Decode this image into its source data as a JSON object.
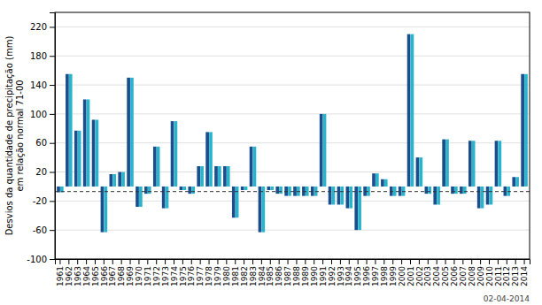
{
  "chart_data": {
    "type": "bar",
    "categories": [
      "1961",
      "1962",
      "1963",
      "1964",
      "1965",
      "1966",
      "1967",
      "1968",
      "1969",
      "1970",
      "1971",
      "1972",
      "1973",
      "1974",
      "1975",
      "1976",
      "1977",
      "1978",
      "1979",
      "1980",
      "1981",
      "1982",
      "1983",
      "1984",
      "1985",
      "1986",
      "1987",
      "1988",
      "1989",
      "1990",
      "1991",
      "1992",
      "1993",
      "1994",
      "1995",
      "1996",
      "1997",
      "1998",
      "1999",
      "2000",
      "2001",
      "2002",
      "2003",
      "2004",
      "2005",
      "2006",
      "2007",
      "2008",
      "2009",
      "2010",
      "2011",
      "2012",
      "2013",
      "2014"
    ],
    "series": [
      {
        "color": "#1a4e8c",
        "values": [
          -8,
          155,
          77,
          120,
          92,
          -63,
          17,
          20,
          150,
          -28,
          -10,
          55,
          -30,
          90,
          -5,
          -10,
          28,
          75,
          28,
          28,
          -43,
          -5,
          55,
          -63,
          -5,
          -10,
          -13,
          -13,
          -13,
          -13,
          100,
          -25,
          -25,
          -30,
          -60,
          -13,
          18,
          10,
          -13,
          -13,
          210,
          40,
          -10,
          -25,
          65,
          -10,
          -10,
          63,
          -30,
          -25,
          63,
          -13,
          13,
          155
        ]
      },
      {
        "color": "#29b4cc",
        "values": [
          -8,
          155,
          77,
          120,
          92,
          -63,
          17,
          20,
          150,
          -28,
          -10,
          55,
          -30,
          90,
          -5,
          -10,
          28,
          75,
          28,
          28,
          -43,
          -5,
          55,
          -63,
          -5,
          -10,
          -13,
          -13,
          -13,
          -13,
          100,
          -25,
          -25,
          -30,
          -60,
          -13,
          18,
          10,
          -13,
          -13,
          210,
          40,
          -10,
          -25,
          65,
          -10,
          -10,
          63,
          -30,
          -25,
          63,
          -13,
          13,
          155
        ]
      }
    ],
    "ylabel": "Desvios da quantidade de precipitação (mm)\nem relação normal 71-00",
    "ylim": [
      -100,
      240
    ],
    "yticks": [
      -100,
      -60,
      -20,
      20,
      60,
      100,
      140,
      180,
      220
    ],
    "reference_line": -7,
    "annotation": "02-04-2014",
    "grid": true
  }
}
